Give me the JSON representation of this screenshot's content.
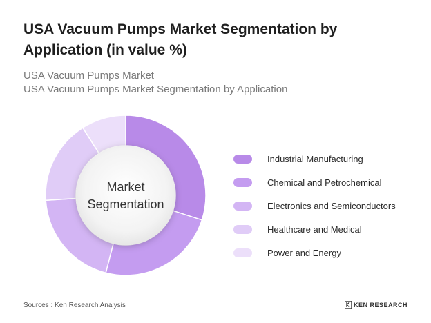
{
  "header": {
    "title": "USA Vacuum Pumps Market Segmentation by Application (in value %)",
    "subtitle_1": "USA Vacuum Pumps Market",
    "subtitle_2": "USA Vacuum Pumps Market Segmentation by Application"
  },
  "chart_data": {
    "type": "pie",
    "variant": "donut",
    "center_label_line1": "Market",
    "center_label_line2": "Segmentation",
    "categories": [
      "Industrial Manufacturing",
      "Chemical and Petrochemical",
      "Electronics and Semiconductors",
      "Healthcare and Medical",
      "Power and Energy"
    ],
    "values": [
      30,
      24,
      20,
      17,
      9
    ],
    "colors": [
      "#b88ae8",
      "#c49cf0",
      "#d3b5f4",
      "#e0ccf7",
      "#ecdffa"
    ],
    "legend_position": "right"
  },
  "footer": {
    "source": "Sources : Ken Research Analysis",
    "brand": "KEN RESEARCH"
  }
}
